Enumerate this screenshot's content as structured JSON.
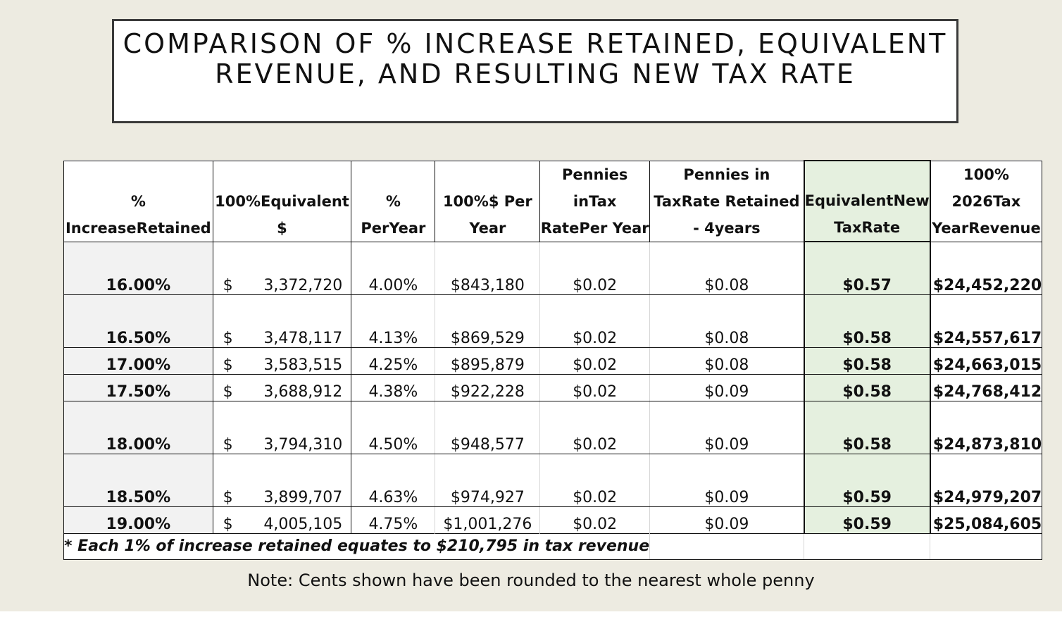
{
  "title": {
    "line1": "COMPARISON OF % INCREASE RETAINED, EQUIVALENT",
    "line2": "REVENUE, AND RESULTING NEW TAX RATE"
  },
  "headers": [
    [
      "% Increase",
      "Retained"
    ],
    [
      "100%",
      "Equivalent $"
    ],
    [
      "% Per",
      "Year"
    ],
    [
      "100%",
      "$ Per Year"
    ],
    [
      "Pennies in",
      "Tax Rate",
      "Per Year"
    ],
    [
      "Pennies in Tax",
      "Rate Retained - 4",
      "years"
    ],
    [
      "Equivalent",
      "New Tax",
      "Rate"
    ],
    [
      "100% 2026",
      "Tax Year",
      "Revenue"
    ]
  ],
  "rows": [
    {
      "pct": "16.00%",
      "sign": "$",
      "eq": "3,372,720",
      "pp": "4.00%",
      "dpy": "$843,180",
      "pen": "$0.02",
      "pen4": "$0.08",
      "ntr": "$0.57",
      "rev": "$24,452,220"
    },
    {
      "pct": "16.50%",
      "sign": "$",
      "eq": "3,478,117",
      "pp": "4.13%",
      "dpy": "$869,529",
      "pen": "$0.02",
      "pen4": "$0.08",
      "ntr": "$0.58",
      "rev": "$24,557,617"
    },
    {
      "pct": "17.00%",
      "sign": "$",
      "eq": "3,583,515",
      "pp": "4.25%",
      "dpy": "$895,879",
      "pen": "$0.02",
      "pen4": "$0.08",
      "ntr": "$0.58",
      "rev": "$24,663,015"
    },
    {
      "pct": "17.50%",
      "sign": "$",
      "eq": "3,688,912",
      "pp": "4.38%",
      "dpy": "$922,228",
      "pen": "$0.02",
      "pen4": "$0.09",
      "ntr": "$0.58",
      "rev": "$24,768,412"
    },
    {
      "pct": "18.00%",
      "sign": "$",
      "eq": "3,794,310",
      "pp": "4.50%",
      "dpy": "$948,577",
      "pen": "$0.02",
      "pen4": "$0.09",
      "ntr": "$0.58",
      "rev": "$24,873,810"
    },
    {
      "pct": "18.50%",
      "sign": "$",
      "eq": "3,899,707",
      "pp": "4.63%",
      "dpy": "$974,927",
      "pen": "$0.02",
      "pen4": "$0.09",
      "ntr": "$0.59",
      "rev": "$24,979,207"
    },
    {
      "pct": "19.00%",
      "sign": "$",
      "eq": "4,005,105",
      "pp": "4.75%",
      "dpy": "$1,001,276",
      "pen": "$0.02",
      "pen4": "$0.09",
      "ntr": "$0.59",
      "rev": "$25,084,605"
    }
  ],
  "footnote": "* Each 1% of increase retained equates to $210,795 in tax revenue",
  "note": "Note: Cents shown have been rounded to the nearest whole penny"
}
